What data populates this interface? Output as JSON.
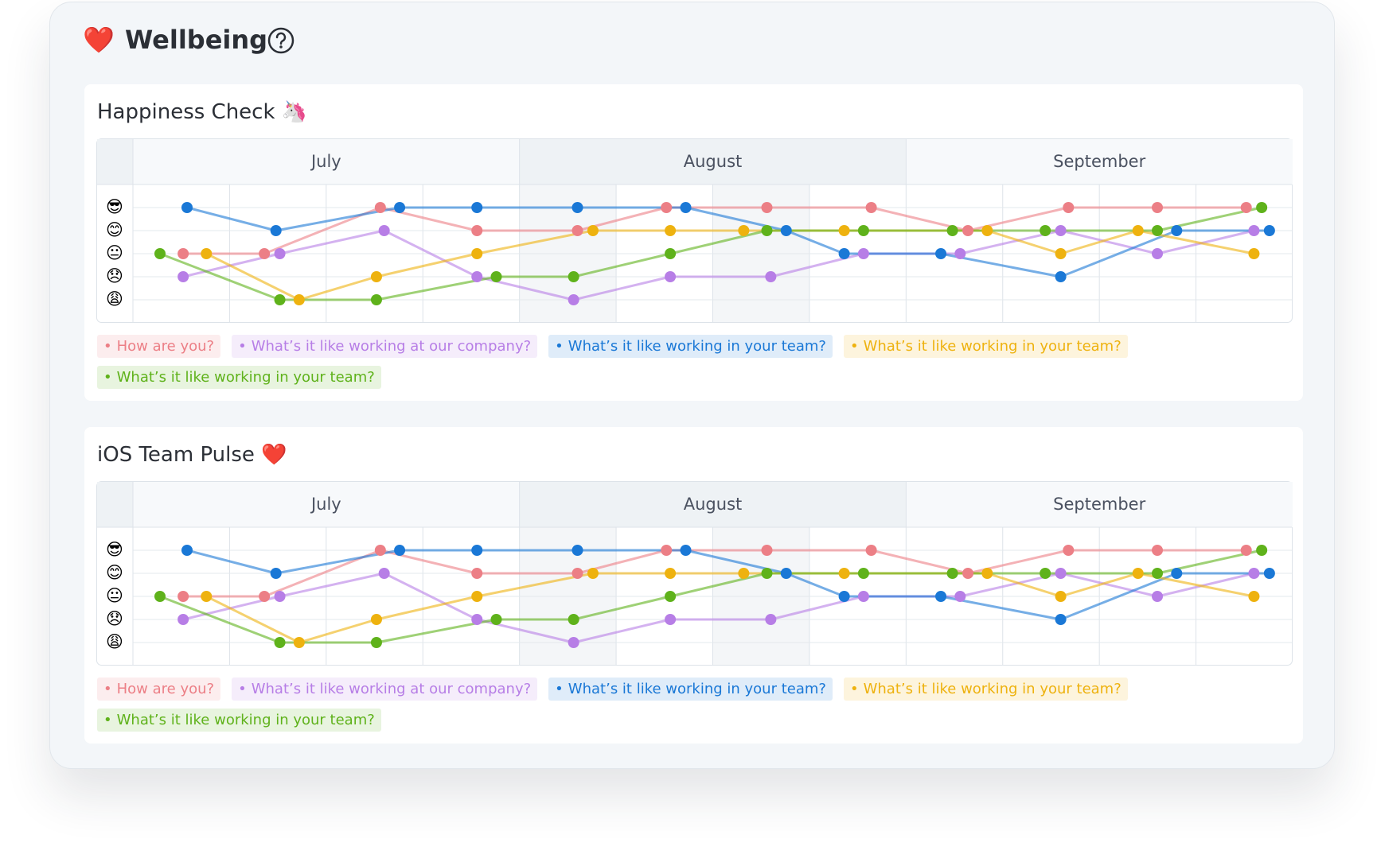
{
  "page": {
    "icon": "❤️",
    "title": "Wellbeing"
  },
  "chart_data": [
    {
      "type": "line",
      "title": "Happiness Check 🦄",
      "categories": [
        "July",
        "August",
        "September"
      ],
      "xlim": [
        0,
        3
      ],
      "ylim": [
        0,
        6
      ],
      "yticks": [
        {
          "value": 5,
          "label": "😎"
        },
        {
          "value": 4,
          "label": "😊"
        },
        {
          "value": 3,
          "label": "😐"
        },
        {
          "value": 2,
          "label": "😞"
        },
        {
          "value": 1,
          "label": "😩"
        }
      ],
      "grid": true,
      "series": [
        {
          "name": "How are you?",
          "color": "#ec7f86",
          "x": [
            0.13,
            0.34,
            0.64,
            0.89,
            1.15,
            1.38,
            1.64,
            1.91,
            2.16,
            2.42,
            2.65,
            2.88
          ],
          "values": [
            3,
            3,
            5,
            4,
            4,
            5,
            5,
            5,
            4,
            5,
            5,
            5
          ]
        },
        {
          "name": "What’s it like working at our company?",
          "color": "#b77ee6",
          "x": [
            0.13,
            0.38,
            0.65,
            0.89,
            1.14,
            1.39,
            1.65,
            1.89,
            2.14,
            2.4,
            2.65,
            2.9
          ],
          "values": [
            2,
            3,
            4,
            2,
            1,
            2,
            2,
            3,
            3,
            4,
            3,
            4
          ]
        },
        {
          "name": "What’s it like working in your team?",
          "color": "#1a78d6",
          "x": [
            0.14,
            0.37,
            0.69,
            0.89,
            1.15,
            1.43,
            1.69,
            1.84,
            2.09,
            2.4,
            2.7,
            2.94
          ],
          "values": [
            5,
            4,
            5,
            5,
            5,
            5,
            4,
            3,
            3,
            2,
            4,
            4
          ]
        },
        {
          "name": "What’s it like working in your team?",
          "color": "#eeb20f",
          "x": [
            0.19,
            0.43,
            0.63,
            0.89,
            1.19,
            1.39,
            1.58,
            1.84,
            2.21,
            2.4,
            2.6,
            2.9
          ],
          "values": [
            3,
            1,
            2,
            3,
            4,
            4,
            4,
            4,
            4,
            3,
            4,
            3
          ]
        },
        {
          "name": "What’s it like working in your team?",
          "color": "#5fb21b",
          "x": [
            0.07,
            0.38,
            0.63,
            0.94,
            1.14,
            1.39,
            1.64,
            1.89,
            2.12,
            2.36,
            2.65,
            2.92
          ],
          "values": [
            3,
            1,
            1,
            2,
            2,
            3,
            4,
            4,
            4,
            4,
            4,
            5
          ]
        }
      ]
    },
    {
      "type": "line",
      "title": "iOS Team Pulse ❤️",
      "categories": [
        "July",
        "August",
        "September"
      ],
      "xlim": [
        0,
        3
      ],
      "ylim": [
        0,
        6
      ],
      "yticks": [
        {
          "value": 5,
          "label": "😎"
        },
        {
          "value": 4,
          "label": "😊"
        },
        {
          "value": 3,
          "label": "😐"
        },
        {
          "value": 2,
          "label": "😞"
        },
        {
          "value": 1,
          "label": "😩"
        }
      ],
      "grid": true,
      "series": [
        {
          "name": "How are you?",
          "color": "#ec7f86",
          "x": [
            0.13,
            0.34,
            0.64,
            0.89,
            1.15,
            1.38,
            1.64,
            1.91,
            2.16,
            2.42,
            2.65,
            2.88
          ],
          "values": [
            3,
            3,
            5,
            4,
            4,
            5,
            5,
            5,
            4,
            5,
            5,
            5
          ]
        },
        {
          "name": "What’s it like working at our company?",
          "color": "#b77ee6",
          "x": [
            0.13,
            0.38,
            0.65,
            0.89,
            1.14,
            1.39,
            1.65,
            1.89,
            2.14,
            2.4,
            2.65,
            2.9
          ],
          "values": [
            2,
            3,
            4,
            2,
            1,
            2,
            2,
            3,
            3,
            4,
            3,
            4
          ]
        },
        {
          "name": "What’s it like working in your team?",
          "color": "#1a78d6",
          "x": [
            0.14,
            0.37,
            0.69,
            0.89,
            1.15,
            1.43,
            1.69,
            1.84,
            2.09,
            2.4,
            2.7,
            2.94
          ],
          "values": [
            5,
            4,
            5,
            5,
            5,
            5,
            4,
            3,
            3,
            2,
            4,
            4
          ]
        },
        {
          "name": "What’s it like working in your team?",
          "color": "#eeb20f",
          "x": [
            0.19,
            0.43,
            0.63,
            0.89,
            1.19,
            1.39,
            1.58,
            1.84,
            2.21,
            2.4,
            2.6,
            2.9
          ],
          "values": [
            3,
            1,
            2,
            3,
            4,
            4,
            4,
            4,
            4,
            3,
            4,
            3
          ]
        },
        {
          "name": "What’s it like working in your team?",
          "color": "#5fb21b",
          "x": [
            0.07,
            0.38,
            0.63,
            0.94,
            1.14,
            1.39,
            1.64,
            1.89,
            2.12,
            2.36,
            2.65,
            2.92
          ],
          "values": [
            3,
            1,
            1,
            2,
            2,
            3,
            4,
            4,
            4,
            4,
            4,
            5
          ]
        }
      ]
    }
  ]
}
